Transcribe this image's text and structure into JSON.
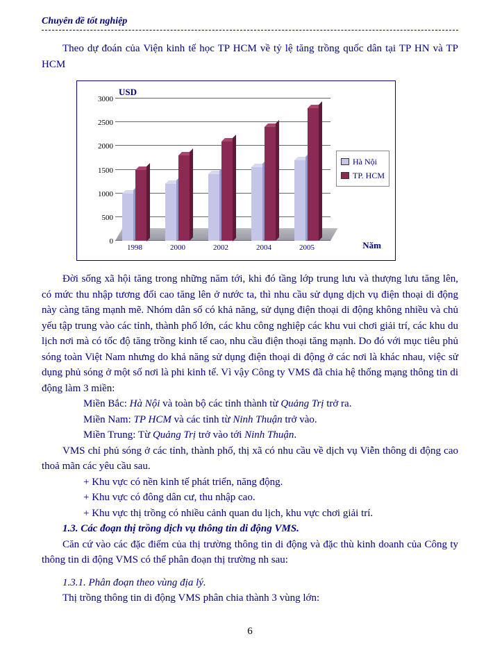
{
  "header": "Chuyên đề tốt nghiệp",
  "intro": "Theo dự đoán của Viện kinh tế học TP HCM về tỷ lệ tăng trồng   quốc dân tại TP HN và TP HCM",
  "chart": {
    "type": "bar",
    "y_label": "USD",
    "x_label": "Năm",
    "ylim": [
      0,
      3000
    ],
    "ytick_step": 500,
    "yticks": [
      0,
      500,
      1000,
      1500,
      2000,
      2500,
      3000
    ],
    "categories": [
      "1998",
      "2000",
      "2002",
      "2004",
      "2005"
    ],
    "series": [
      {
        "name": "Hà Nội",
        "color": "#c5c5e8",
        "values": [
          1000,
          1200,
          1400,
          1550,
          1700
        ]
      },
      {
        "name": "TP. HCM",
        "color": "#8b2a52",
        "values": [
          1500,
          1800,
          2100,
          2400,
          2800
        ]
      }
    ],
    "background_color": "#ffffff",
    "grid_color": "#666666",
    "label_fontsize": 13,
    "tick_fontsize": 11
  },
  "body_p1": "Đời sống xã hội tăng trong những năm tới, khi đó tầng lớp trung lưu  và thượng  lưu  tăng lên, có mức thu nhập tương  đối cao tăng lên ở nước  ta, thì nhu cầu sử dụng dịch vụ điện thoại di động này càng tăng mạnh mẽ. Nhóm dân số có khả năng, sử dụng điện thoại di động không nhiều và chủ yếu tập trung vào các tỉnh, thành phố lớn, các khu công nghiệp các khu vui chơi giải trí, các khu du lịch nơi mà có tốc độ tăng trồng  kinh tế cao, nhu cầu điện thoại tăng mạnh. Do đó với mục tiêu phủ sóng toàn Việt Nam nhưng  do khả năng sử dụng điện thoại di động ở các nơi là khác nhau, việc sử dụng phủ sóng ở một số nơi là phi kinh tế. Vì vậy Công ty VMS đã chia hệ thống mạng thông tin di động làm 3 miền:",
  "regions": {
    "bac_label": "Miền Bắc: ",
    "bac_em1": "Hà Nội",
    "bac_mid": " và toàn bộ các tỉnh thành từ ",
    "bac_em2": "Quảng Trị",
    "bac_end": " trở ra.",
    "nam_label": "Miền Nam: ",
    "nam_em1": "TP HCM",
    "nam_mid": " và các tỉnh từ ",
    "nam_em2": "Ninh Thuận",
    "nam_end": " trở vào.",
    "trung_label": "Miền Trung: Từ ",
    "trung_em1": "Quảng Trị",
    "trung_mid": " trở vào tới ",
    "trung_em2": "Ninh Thuận",
    "trung_end": "."
  },
  "body_p2": "VMS chỉ phủ sóng ở các tỉnh, thành phố, thị xã có nhu cầu về dịch vụ Viễn thông di động cao thoả mãn các yêu cầu sau.",
  "bullets": [
    "+ Khu vực có nền kinh tế phát triển, năng động.",
    "+ Khu vực có đông dân cư,   thu nhập cao.",
    "+ Khu vực thị trồng   có nhiều cảnh quan du lịch, khu vực chơi giải trí."
  ],
  "section_13": "1.3. Các đoạn thị trồng  dịch vụ thông tin di động VMS.",
  "body_p3": "Căn cứ vào các đặc điểm của thị trường thông tin di động và đặc thù kinh doanh của Công ty thông tin di động VMS có thể phân đoạn thị trường nh   sau:",
  "section_131": "1.3.1. Phân đoạn theo vùng địa lý.",
  "body_p4": "Thị trồng   thông tin di động VMS phân chia thành 3 vùng lớn:",
  "page_number": "6"
}
